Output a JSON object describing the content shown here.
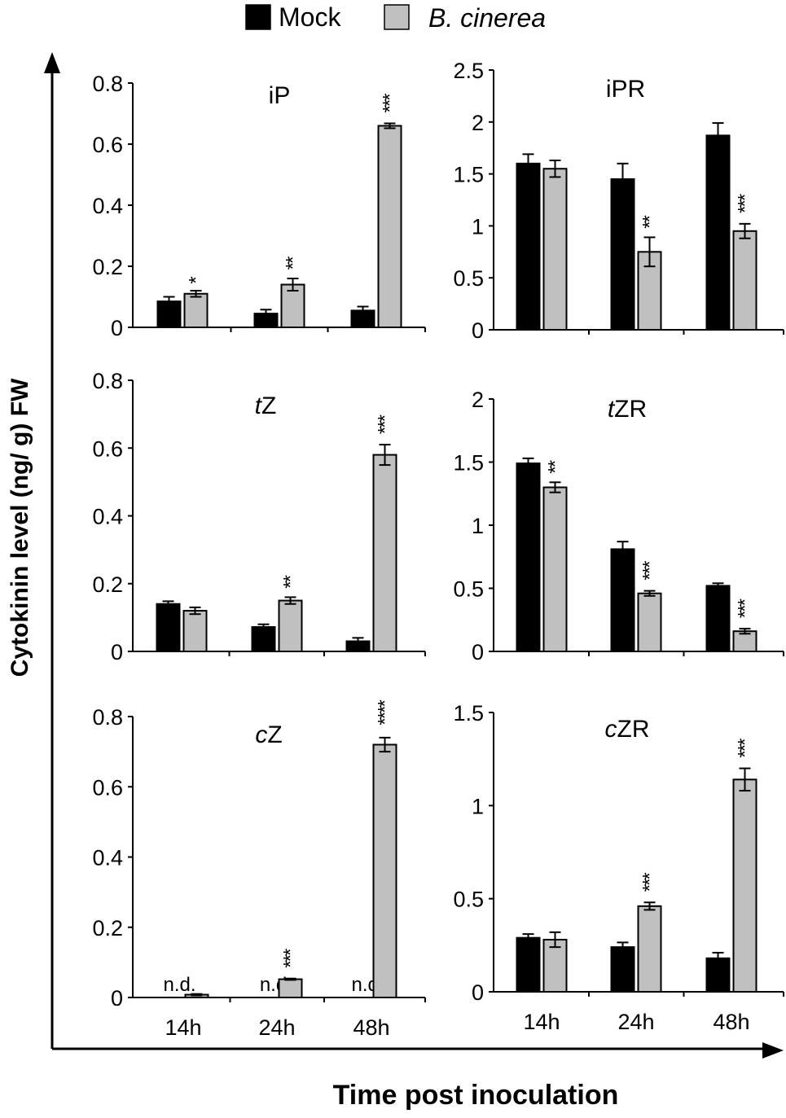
{
  "legend": {
    "mock_label": "Mock",
    "infected_label": "B. cinerea",
    "mock_color": "#000000",
    "infected_color": "#c0c0c0"
  },
  "ylabel": "Cytokinin level (ng/ g) FW",
  "xlabel": "Time post inoculation",
  "categories": [
    "14h",
    "24h",
    "48h"
  ],
  "chart_data": [
    {
      "type": "bar",
      "title_prefix": "",
      "title_rest": "iP",
      "title": "iP",
      "ylim": [
        0,
        0.8
      ],
      "yticks": [
        0,
        0.2,
        0.4,
        0.6,
        0.8
      ],
      "ytick_labels": [
        "0",
        "0.2",
        "0.4",
        "0.6",
        "0.8"
      ],
      "categories": [
        "14h",
        "24h",
        "48h"
      ],
      "series": [
        {
          "name": "Mock",
          "values": [
            0.085,
            0.045,
            0.055
          ],
          "errors": [
            0.015,
            0.013,
            0.013
          ]
        },
        {
          "name": "B. cinerea",
          "values": [
            0.11,
            0.14,
            0.66
          ],
          "errors": [
            0.01,
            0.02,
            0.008
          ]
        }
      ],
      "mock_labels": [
        "",
        "",
        ""
      ],
      "infected_labels": [
        "",
        "",
        ""
      ],
      "significance": [
        "*",
        "**",
        "***"
      ]
    },
    {
      "type": "bar",
      "title_prefix": "",
      "title_rest": "iPR",
      "title": "iPR",
      "ylim": [
        0,
        2.5
      ],
      "yticks": [
        0,
        0.5,
        1,
        1.5,
        2,
        2.5
      ],
      "ytick_labels": [
        "0",
        "0.5",
        "1",
        "1.5",
        "2",
        "2.5"
      ],
      "categories": [
        "14h",
        "24h",
        "48h"
      ],
      "series": [
        {
          "name": "Mock",
          "values": [
            1.6,
            1.45,
            1.87
          ],
          "errors": [
            0.09,
            0.15,
            0.12
          ]
        },
        {
          "name": "B. cinerea",
          "values": [
            1.55,
            0.75,
            0.95
          ],
          "errors": [
            0.08,
            0.14,
            0.07
          ]
        }
      ],
      "mock_labels": [
        "",
        "",
        ""
      ],
      "infected_labels": [
        "",
        "",
        ""
      ],
      "significance": [
        "",
        "**",
        "***"
      ]
    },
    {
      "type": "bar",
      "title_prefix": "t",
      "title_rest": "Z",
      "title": "tZ",
      "ylim": [
        0,
        0.8
      ],
      "yticks": [
        0,
        0.2,
        0.4,
        0.6,
        0.8
      ],
      "ytick_labels": [
        "0",
        "0.2",
        "0.4",
        "0.6",
        "0.8"
      ],
      "categories": [
        "14h",
        "24h",
        "48h"
      ],
      "series": [
        {
          "name": "Mock",
          "values": [
            0.14,
            0.072,
            0.03
          ],
          "errors": [
            0.008,
            0.008,
            0.01
          ]
        },
        {
          "name": "B. cinerea",
          "values": [
            0.12,
            0.15,
            0.58
          ],
          "errors": [
            0.01,
            0.01,
            0.03
          ]
        }
      ],
      "mock_labels": [
        "",
        "",
        ""
      ],
      "infected_labels": [
        "",
        "",
        ""
      ],
      "significance": [
        "",
        "**",
        "***"
      ]
    },
    {
      "type": "bar",
      "title_prefix": "t",
      "title_rest": "ZR",
      "title": "tZR",
      "ylim": [
        0,
        2
      ],
      "yticks": [
        0,
        0.5,
        1,
        1.5,
        2
      ],
      "ytick_labels": [
        "0",
        "0.5",
        "1",
        "1.5",
        "2"
      ],
      "categories": [
        "14h",
        "24h",
        "48h"
      ],
      "series": [
        {
          "name": "Mock",
          "values": [
            1.49,
            0.81,
            0.52
          ],
          "errors": [
            0.04,
            0.06,
            0.02
          ]
        },
        {
          "name": "B. cinerea",
          "values": [
            1.3,
            0.46,
            0.16
          ],
          "errors": [
            0.04,
            0.02,
            0.02
          ]
        }
      ],
      "mock_labels": [
        "",
        "",
        ""
      ],
      "infected_labels": [
        "",
        "",
        ""
      ],
      "significance": [
        "**",
        "***",
        "***"
      ]
    },
    {
      "type": "bar",
      "title_prefix": "c",
      "title_rest": "Z",
      "title": "cZ",
      "ylim": [
        0,
        0.8
      ],
      "yticks": [
        0,
        0.2,
        0.4,
        0.6,
        0.8
      ],
      "ytick_labels": [
        "0",
        "0.2",
        "0.4",
        "0.6",
        "0.8"
      ],
      "categories": [
        "14h",
        "24h",
        "48h"
      ],
      "series": [
        {
          "name": "Mock",
          "values": [
            0,
            0,
            0
          ],
          "errors": [
            0,
            0,
            0
          ]
        },
        {
          "name": "B. cinerea",
          "values": [
            0.008,
            0.052,
            0.72
          ],
          "errors": [
            0.002,
            0.002,
            0.02
          ]
        }
      ],
      "mock_labels": [
        "n.d.",
        "n.d",
        "n.d."
      ],
      "infected_labels": [
        "",
        "",
        ""
      ],
      "significance": [
        "",
        "***",
        "****"
      ]
    },
    {
      "type": "bar",
      "title_prefix": "c",
      "title_rest": "ZR",
      "title": "cZR",
      "ylim": [
        0,
        1.5
      ],
      "yticks": [
        0,
        0.5,
        1,
        1.5
      ],
      "ytick_labels": [
        "0",
        "0.5",
        "1",
        "1.5"
      ],
      "categories": [
        "14h",
        "24h",
        "48h"
      ],
      "series": [
        {
          "name": "Mock",
          "values": [
            0.29,
            0.24,
            0.18
          ],
          "errors": [
            0.02,
            0.025,
            0.03
          ]
        },
        {
          "name": "B. cinerea",
          "values": [
            0.28,
            0.46,
            1.14
          ],
          "errors": [
            0.04,
            0.02,
            0.06
          ]
        }
      ],
      "mock_labels": [
        "",
        "",
        ""
      ],
      "infected_labels": [
        "",
        "",
        ""
      ],
      "significance": [
        "",
        "***",
        "***"
      ]
    }
  ]
}
